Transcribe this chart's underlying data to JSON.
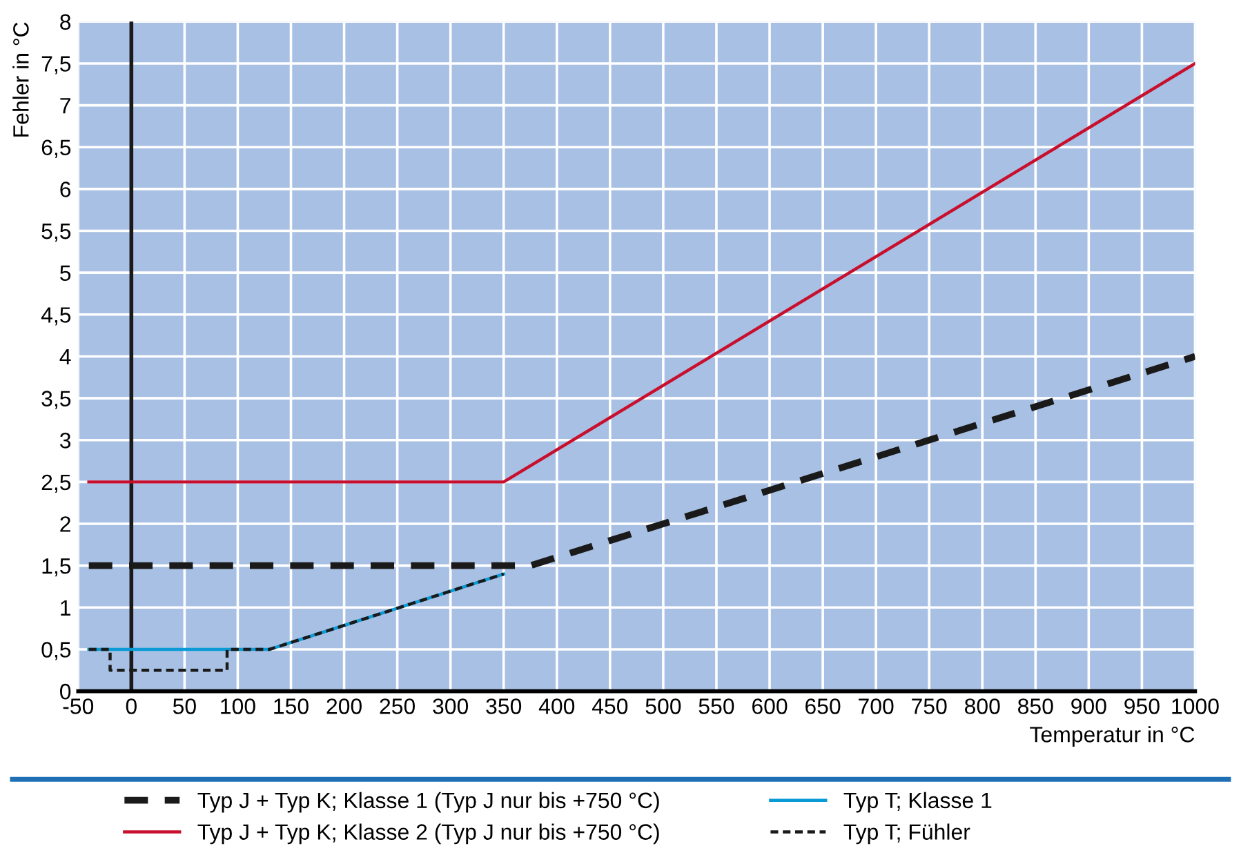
{
  "chart_data": {
    "type": "line",
    "xlabel": "Temperatur in °C",
    "ylabel": "Fehler in °C",
    "xlim": [
      -50,
      1000
    ],
    "ylim": [
      0,
      8
    ],
    "xticks": [
      -50,
      0,
      50,
      100,
      150,
      200,
      250,
      300,
      350,
      400,
      450,
      500,
      550,
      600,
      650,
      700,
      750,
      800,
      850,
      900,
      950,
      1000
    ],
    "yticks": [
      0,
      {
        "value": 0.5,
        "label": "0,5"
      },
      1,
      {
        "value": 1.5,
        "label": "1,5"
      },
      2,
      {
        "value": 2.5,
        "label": "2,5"
      },
      3,
      {
        "value": 3.5,
        "label": "3,5"
      },
      4,
      {
        "value": 4.5,
        "label": "4,5"
      },
      5,
      {
        "value": 5.5,
        "label": "5,5"
      },
      6,
      {
        "value": 6.5,
        "label": "6,5"
      },
      7,
      {
        "value": 7.5,
        "label": "7,5"
      },
      8
    ],
    "grid": true,
    "legend": "bottom",
    "ref_lines": [
      {
        "axis": "x",
        "value": 0,
        "color": "#1a1a1a",
        "line_style": "solid"
      }
    ],
    "series": [
      {
        "name": "Typ J + Typ K; Klasse 1 (Typ J nur bis +750 °C)",
        "color": "#1a1a1a",
        "line_style": "dashed",
        "x": [
          -40,
          375,
          1000
        ],
        "values": [
          1.5,
          1.5,
          4
        ]
      },
      {
        "name": "Typ J + Typ K; Klasse 2 (Typ J nur bis +750 °C)",
        "color": "#c8102e",
        "line_style": "solid",
        "x": [
          -40,
          350,
          1000
        ],
        "values": [
          2.5,
          2.5,
          7.5
        ]
      },
      {
        "name": "Typ T; Klasse 1",
        "color": "#0a9ad6",
        "line_style": "solid",
        "x": [
          -40,
          130,
          350
        ],
        "values": [
          0.5,
          0.5,
          1.4
        ]
      },
      {
        "name": "Typ T; Fühler",
        "color": "#1a1a1a",
        "line_style": "dashed",
        "x": [
          -40,
          -20,
          -20,
          90,
          90,
          130,
          350
        ],
        "values": [
          0.5,
          0.5,
          0.25,
          0.25,
          0.5,
          0.5,
          1.4
        ]
      }
    ]
  }
}
